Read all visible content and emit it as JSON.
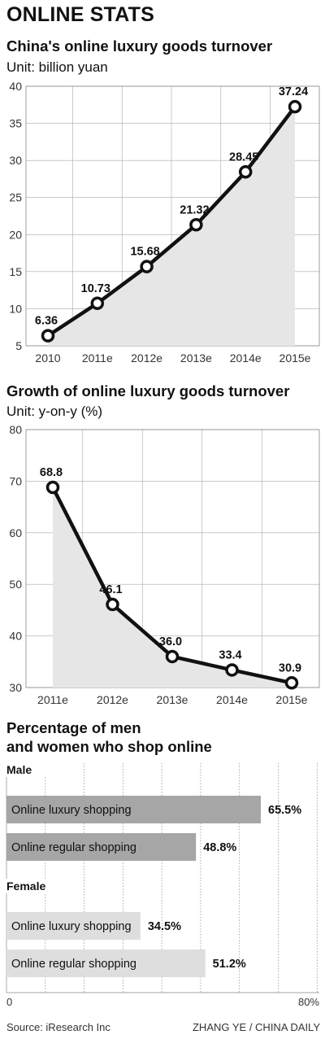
{
  "title": "ONLINE STATS",
  "charts": [
    {
      "title": "China's online luxury goods turnover",
      "unit": "Unit: billion yuan"
    },
    {
      "title": "Growth of online luxury goods turnover",
      "unit": "Unit: y-on-y (%)"
    },
    {
      "title_lines": [
        "Percentage of men",
        "and women who shop online"
      ]
    }
  ],
  "chart_data": [
    {
      "type": "area",
      "title": "China's online luxury goods turnover",
      "subtitle": "Unit: billion yuan",
      "categories": [
        "2010",
        "2011e",
        "2012e",
        "2013e",
        "2014e",
        "2015e"
      ],
      "values": [
        6.36,
        10.73,
        15.68,
        21.32,
        28.45,
        37.24
      ],
      "value_labels": [
        "6.36",
        "10.73",
        "15.68",
        "21.32",
        "28.45",
        "37.24"
      ],
      "ylim": [
        5,
        40
      ],
      "yticks": [
        5,
        10,
        15,
        20,
        25,
        30,
        35,
        40
      ],
      "grid": true,
      "colors": {
        "line": "#111111",
        "fill": "#e6e6e6",
        "grid": "#aaaaaa"
      }
    },
    {
      "type": "area",
      "title": "Growth of online luxury goods turnover",
      "subtitle": "Unit: y-on-y (%)",
      "categories": [
        "2011e",
        "2012e",
        "2013e",
        "2014e",
        "2015e"
      ],
      "values": [
        68.8,
        46.1,
        36.0,
        33.4,
        30.9
      ],
      "value_labels": [
        "68.8",
        "46.1",
        "36.0",
        "33.4",
        "30.9"
      ],
      "ylim": [
        30,
        80
      ],
      "yticks": [
        30,
        40,
        50,
        60,
        70,
        80
      ],
      "grid": true,
      "colors": {
        "line": "#111111",
        "fill": "#e6e6e6",
        "grid": "#aaaaaa"
      }
    },
    {
      "type": "bar",
      "orientation": "horizontal",
      "title": "Percentage of men and women who shop online",
      "xlim": [
        0,
        80
      ],
      "xtick_labels": [
        "0",
        "80%"
      ],
      "grid": true,
      "groups": [
        {
          "name": "Male",
          "color": "#a6a6a6",
          "bars": [
            {
              "label": "Online luxury shopping",
              "value": 65.5,
              "value_label": "65.5%"
            },
            {
              "label": "Online regular shopping",
              "value": 48.8,
              "value_label": "48.8%"
            }
          ]
        },
        {
          "name": "Female",
          "color": "#dedede",
          "bars": [
            {
              "label": "Online luxury shopping",
              "value": 34.5,
              "value_label": "34.5%"
            },
            {
              "label": "Online regular shopping",
              "value": 51.2,
              "value_label": "51.2%"
            }
          ]
        }
      ]
    }
  ],
  "footer": {
    "source": "Source: iResearch Inc",
    "credit": "ZHANG YE / CHINA DAILY"
  }
}
